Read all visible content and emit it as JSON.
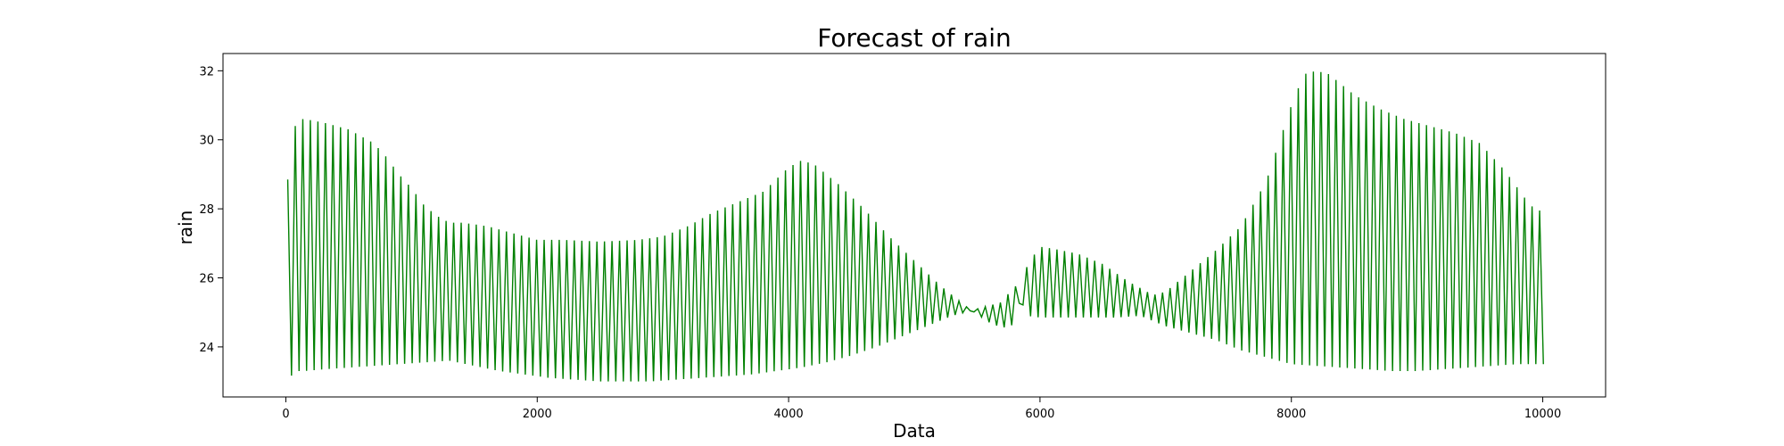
{
  "chart_data": {
    "type": "line",
    "title": "Forecast of rain",
    "xlabel": "Data",
    "ylabel": "rain",
    "xlim": [
      -500,
      10500
    ],
    "ylim": [
      22.55,
      32.5
    ],
    "xticks": [
      0,
      2000,
      4000,
      6000,
      8000,
      10000
    ],
    "yticks": [
      24,
      26,
      28,
      30,
      32
    ],
    "grid": false,
    "series": [
      {
        "color": "#008000",
        "cycle_length": 60,
        "upper_envelope": {
          "x": [
            0,
            20,
            50,
            100,
            150,
            300,
            500,
            700,
            800,
            900,
            1000,
            1100,
            1200,
            1300,
            1400,
            1600,
            1800,
            2000,
            2200,
            2500,
            2800,
            3000,
            3200,
            3400,
            3600,
            3800,
            4000,
            4100,
            4200,
            4400,
            4600,
            4800,
            5000,
            5200,
            5400,
            5600,
            5700,
            5800,
            5900,
            6000,
            6100,
            6300,
            6500,
            6700,
            6900,
            7000,
            7200,
            7400,
            7600,
            7800,
            8000,
            8100,
            8200,
            8300,
            8400,
            8500,
            8700,
            8900,
            9100,
            9300,
            9500,
            9600,
            9700,
            9800,
            9900,
            10000
          ],
          "y": [
            27.5,
            29.3,
            30.2,
            30.6,
            30.6,
            30.5,
            30.3,
            29.9,
            29.5,
            29.0,
            28.6,
            28.1,
            27.8,
            27.6,
            27.6,
            27.5,
            27.3,
            27.1,
            27.1,
            27.05,
            27.1,
            27.2,
            27.5,
            27.9,
            28.2,
            28.5,
            29.2,
            29.4,
            29.3,
            28.7,
            28.0,
            27.2,
            26.5,
            25.8,
            25.2,
            24.7,
            24.55,
            24.65,
            26.4,
            26.9,
            26.85,
            26.7,
            26.4,
            25.9,
            25.5,
            25.6,
            26.2,
            26.8,
            27.5,
            28.8,
            31.0,
            31.9,
            32.0,
            31.9,
            31.6,
            31.3,
            30.9,
            30.6,
            30.4,
            30.2,
            29.9,
            29.5,
            29.1,
            28.6,
            28.1,
            27.9
          ]
        },
        "lower_envelope": {
          "x": [
            0,
            20,
            50,
            100,
            150,
            300,
            500,
            700,
            900,
            1100,
            1300,
            1500,
            1700,
            1900,
            2100,
            2300,
            2500,
            2700,
            2900,
            3100,
            3300,
            3500,
            3700,
            3900,
            4100,
            4300,
            4500,
            4700,
            4900,
            5100,
            5300,
            5500,
            5700,
            5800,
            5900,
            6000,
            6200,
            6400,
            6600,
            6800,
            7000,
            7200,
            7400,
            7600,
            7800,
            8000,
            8200,
            8400,
            8600,
            8800,
            9000,
            9200,
            9400,
            9600,
            9800,
            10000
          ],
          "y": [
            22.9,
            23.0,
            23.2,
            23.3,
            23.3,
            23.35,
            23.4,
            23.45,
            23.5,
            23.55,
            23.6,
            23.45,
            23.3,
            23.2,
            23.1,
            23.05,
            23.0,
            23.0,
            23.0,
            23.05,
            23.1,
            23.15,
            23.2,
            23.3,
            23.4,
            23.55,
            23.75,
            24.0,
            24.3,
            24.6,
            24.9,
            25.1,
            25.3,
            25.8,
            24.9,
            24.85,
            24.85,
            24.85,
            24.85,
            24.9,
            24.6,
            24.4,
            24.2,
            23.9,
            23.7,
            23.5,
            23.45,
            23.4,
            23.35,
            23.3,
            23.3,
            23.35,
            23.4,
            23.45,
            23.5,
            23.5
          ]
        }
      }
    ]
  }
}
